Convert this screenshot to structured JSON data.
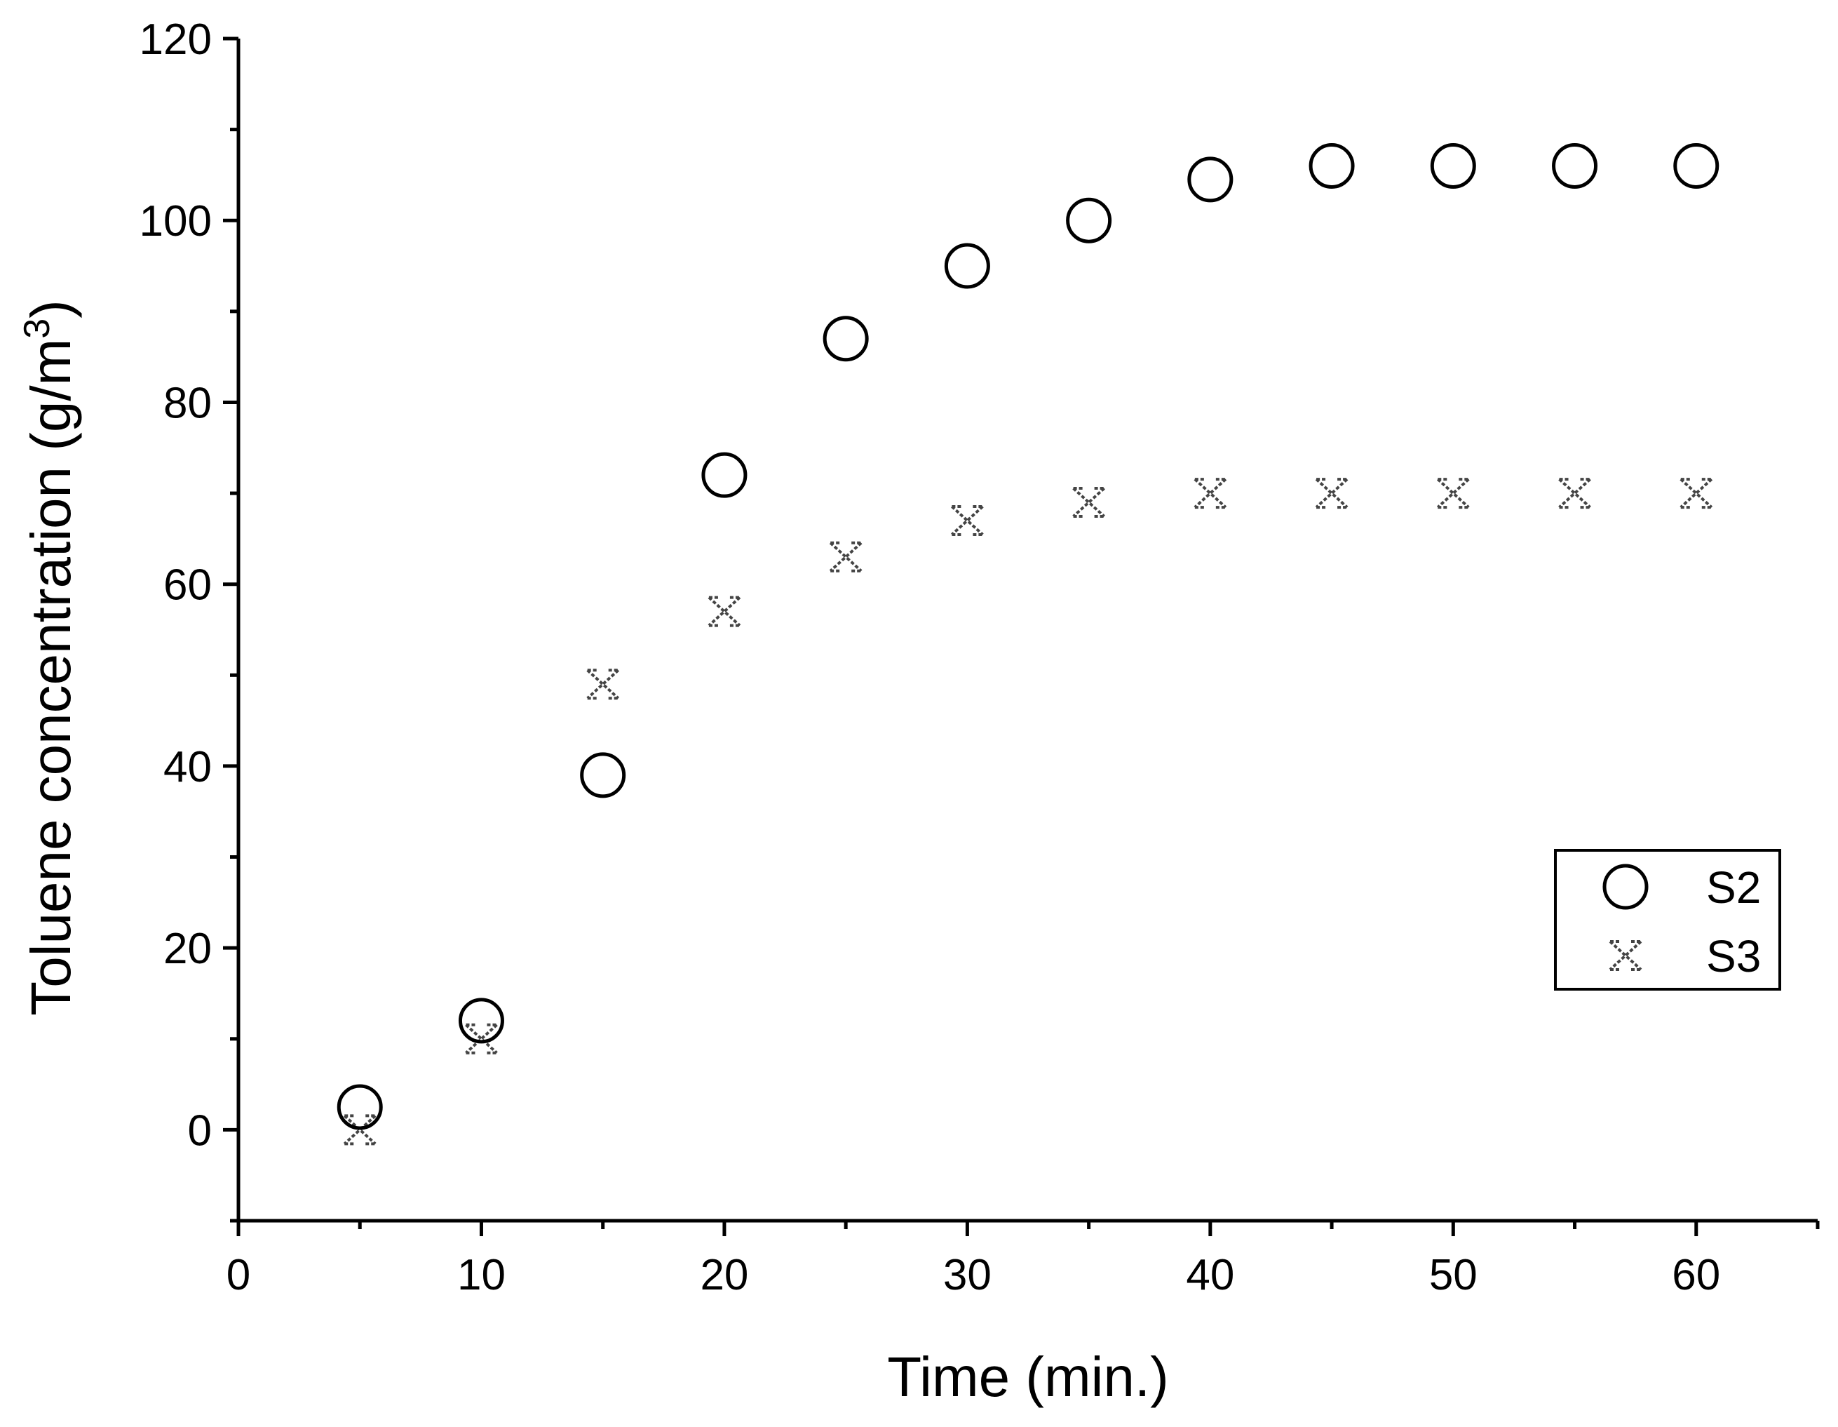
{
  "chart_data": {
    "type": "scatter",
    "title": "",
    "xlabel": "Time (min.)",
    "ylabel_main": "Toluene concentration (g/m",
    "ylabel_sup": "3",
    "ylabel_close": ")",
    "xlim": [
      0,
      65
    ],
    "ylim": [
      -10,
      120
    ],
    "x_ticks": [
      0,
      10,
      20,
      30,
      40,
      50,
      60
    ],
    "y_ticks": [
      0,
      20,
      40,
      60,
      80,
      100,
      120
    ],
    "grid": false,
    "legend_position": "right",
    "series": [
      {
        "name": "S2",
        "marker": "open-circle",
        "color": "#000000",
        "x": [
          5,
          10,
          15,
          20,
          25,
          30,
          35,
          40,
          45,
          50,
          55,
          60
        ],
        "y": [
          2.5,
          12,
          39,
          72,
          87,
          95,
          100,
          104.5,
          106,
          106,
          106,
          106
        ]
      },
      {
        "name": "S3",
        "marker": "cross",
        "color": "#444444",
        "x": [
          5,
          10,
          15,
          20,
          25,
          30,
          35,
          40,
          45,
          50,
          55,
          60
        ],
        "y": [
          0,
          10,
          49,
          57,
          63,
          67,
          69,
          70,
          70,
          70,
          70,
          70
        ]
      }
    ]
  }
}
